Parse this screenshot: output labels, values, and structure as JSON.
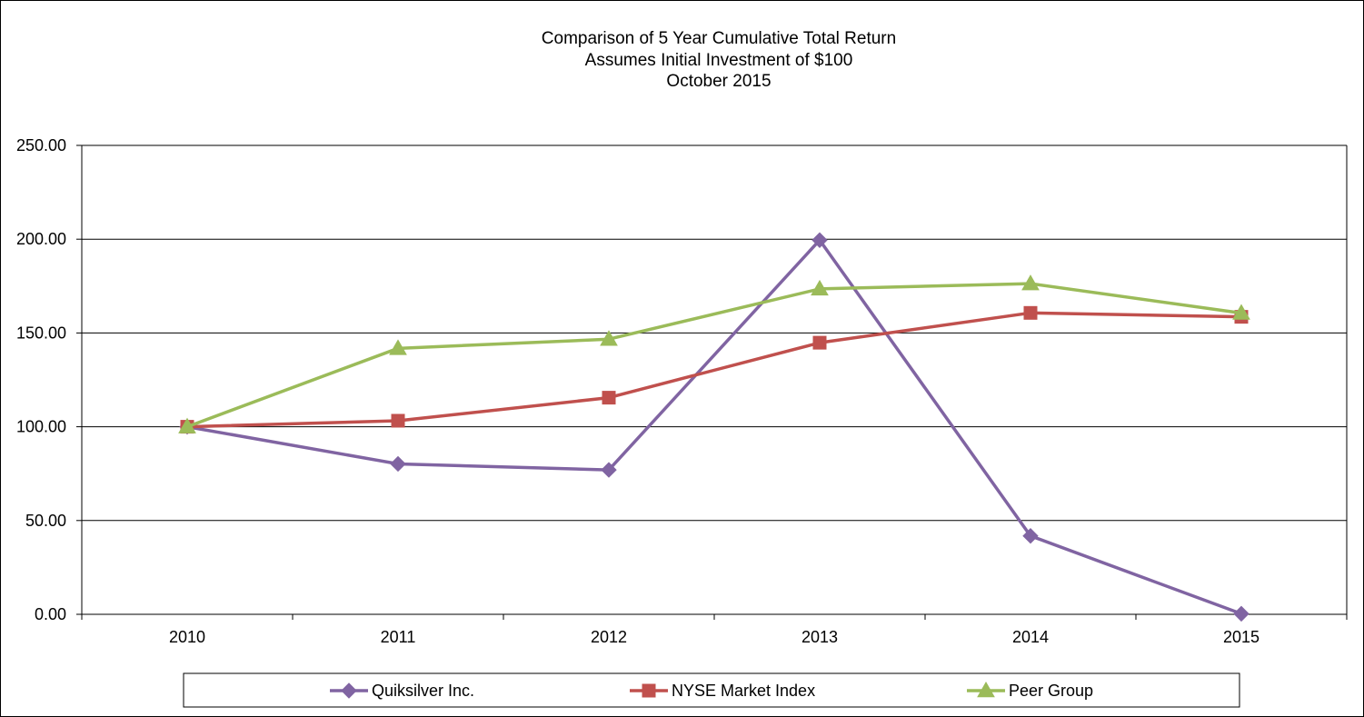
{
  "chart_data": {
    "type": "line",
    "title": [
      "Comparison of 5 Year Cumulative Total Return",
      "Assumes Initial Investment of $100",
      "October 2015"
    ],
    "categories": [
      "2010",
      "2011",
      "2012",
      "2013",
      "2014",
      "2015"
    ],
    "ylim": [
      0,
      250
    ],
    "yticks": [
      0,
      50,
      100,
      150,
      200,
      250
    ],
    "ytick_labels": [
      "0.00",
      "50.00",
      "100.00",
      "150.00",
      "200.00",
      "250.00"
    ],
    "grid": true,
    "legend_position": "bottom",
    "series": [
      {
        "name": "Quiksilver Inc.",
        "color": "#8064a2",
        "marker": "diamond",
        "values": [
          100,
          80.2,
          77.0,
          199.5,
          41.8,
          0.3
        ]
      },
      {
        "name": "NYSE Market Index",
        "color": "#c0504d",
        "marker": "square",
        "values": [
          100,
          103.2,
          115.5,
          144.8,
          160.7,
          158.6
        ]
      },
      {
        "name": "Peer Group",
        "color": "#9bbb59",
        "marker": "triangle",
        "values": [
          100,
          141.8,
          146.7,
          173.5,
          176.3,
          160.6
        ]
      }
    ]
  }
}
